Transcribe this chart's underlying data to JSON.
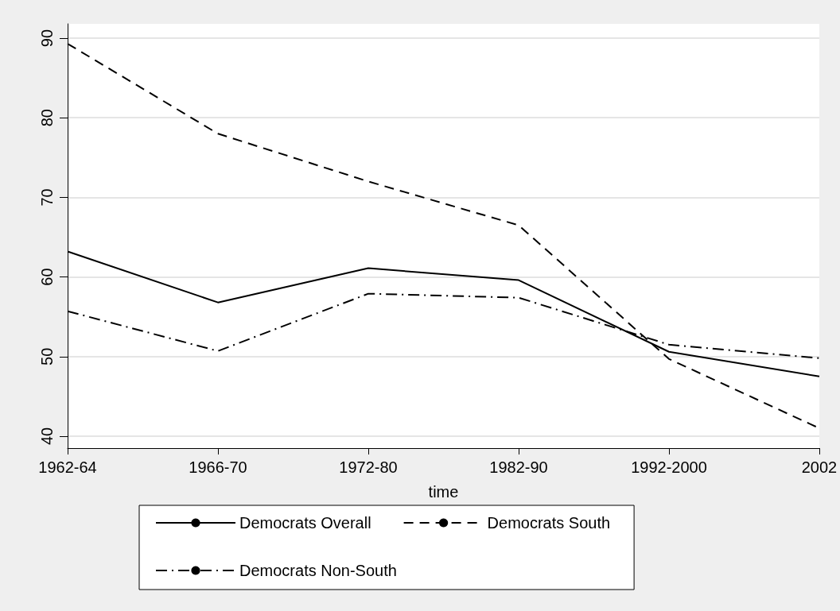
{
  "chart_data": {
    "type": "line",
    "xlabel": "time",
    "categories": [
      "1962-64",
      "1966-70",
      "1972-80",
      "1982-90",
      "1992-2000",
      "2002"
    ],
    "series": [
      {
        "name": "Democrats Overall",
        "color": "#000000",
        "line_style": "solid",
        "values": [
          63.2,
          56.8,
          61.1,
          59.6,
          50.6,
          47.5
        ]
      },
      {
        "name": "Democrats South",
        "color": "#000000",
        "line_style": "dashed",
        "values": [
          89.3,
          78.0,
          72.0,
          66.5,
          49.7,
          41.0
        ]
      },
      {
        "name": "Democrats Non-South",
        "color": "#000000",
        "line_style": "dashdot",
        "values": [
          55.7,
          50.7,
          57.9,
          57.4,
          51.5,
          49.8
        ]
      }
    ],
    "ylim": [
      38.5,
      91.8
    ],
    "yticks": [
      40,
      50,
      60,
      70,
      80,
      90
    ],
    "grid": "y",
    "legend": "bottom",
    "marker": "none"
  }
}
